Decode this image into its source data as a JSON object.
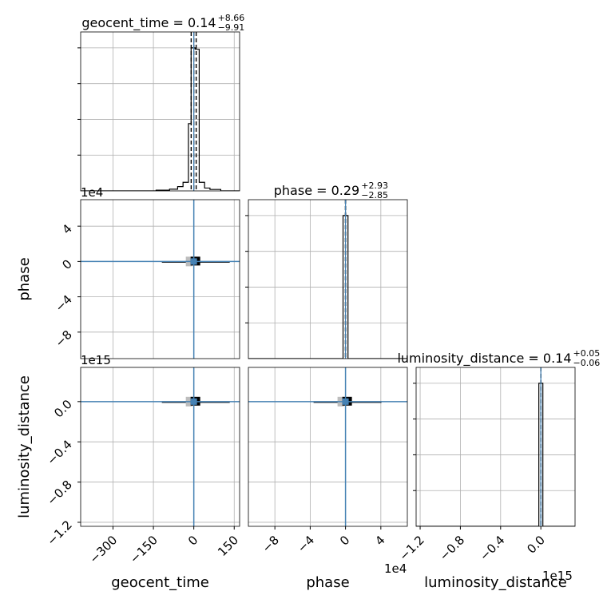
{
  "chart_data": {
    "type": "corner",
    "grid": true,
    "accent_color": "#4682b4",
    "parameters": [
      "geocent_time",
      "phase",
      "luminosity_distance"
    ],
    "truths": {
      "geocent_time": 0.0,
      "phase": 0.0,
      "luminosity_distance": 0.0
    },
    "titles": [
      {
        "param": "geocent_time",
        "lhs": "geocent_time = 0.14",
        "sup": "+8.66",
        "sub": "−9.91"
      },
      {
        "param": "phase",
        "lhs": "phase = 0.29",
        "sup": "+2.93",
        "sub": "−2.85"
      },
      {
        "param": "luminosity_distance",
        "lhs": "luminosity_distance = 0.14",
        "sup": "+0.05",
        "sub": "−0.06"
      }
    ],
    "axes": {
      "geocent_time": {
        "label": "geocent_time",
        "range": [
          -420,
          170
        ],
        "ticks": [
          -300,
          -150,
          0,
          150
        ],
        "tick_labels": [
          "−300",
          "−150",
          "0",
          "150"
        ],
        "offset": ""
      },
      "phase": {
        "label": "phase",
        "range": [
          -110000,
          70000
        ],
        "ticks": [
          -80000,
          -40000,
          0,
          40000
        ],
        "tick_labels": [
          "−8",
          "−4",
          "0",
          "4"
        ],
        "offset": "1e4"
      },
      "luminosity_distance": {
        "label": "luminosity_distance",
        "range": [
          -1240000000000000.0,
          340000000000000.0
        ],
        "ticks": [
          -1200000000000000.0,
          -800000000000000.0,
          -400000000000000.0,
          0.0
        ],
        "tick_labels": [
          "−1.2",
          "−0.8",
          "−0.4",
          "0.0"
        ],
        "offset": "1e15"
      }
    },
    "histograms": [
      {
        "param": "geocent_time",
        "bins": [
          [
            -420,
            -140,
            0
          ],
          [
            -140,
            -90,
            0.005
          ],
          [
            -90,
            -60,
            0.012
          ],
          [
            -60,
            -40,
            0.03
          ],
          [
            -40,
            -20,
            0.06
          ],
          [
            -20,
            -10,
            0.47
          ],
          [
            -10,
            5,
            1.0
          ],
          [
            5,
            20,
            0.99
          ],
          [
            20,
            40,
            0.06
          ],
          [
            40,
            60,
            0.02
          ],
          [
            60,
            100,
            0.01
          ],
          [
            100,
            170,
            0
          ]
        ],
        "quantiles": [
          -9.77,
          0.14,
          8.8
        ]
      },
      {
        "param": "phase",
        "bins": [
          [
            -110000,
            -2800,
            0
          ],
          [
            -2800,
            2800,
            1.0
          ],
          [
            2800,
            70000,
            0
          ]
        ],
        "quantiles": [
          -2.56,
          0.29,
          3.22
        ]
      },
      {
        "param": "luminosity_distance",
        "bins": [
          [
            -1240000000000000.0,
            -20000000000000.0,
            0
          ],
          [
            -20000000000000.0,
            20000000000000.0,
            1.0
          ],
          [
            20000000000000.0,
            340000000000000.0,
            0
          ]
        ],
        "quantiles": [
          0.08,
          0.14,
          0.19
        ]
      }
    ]
  }
}
